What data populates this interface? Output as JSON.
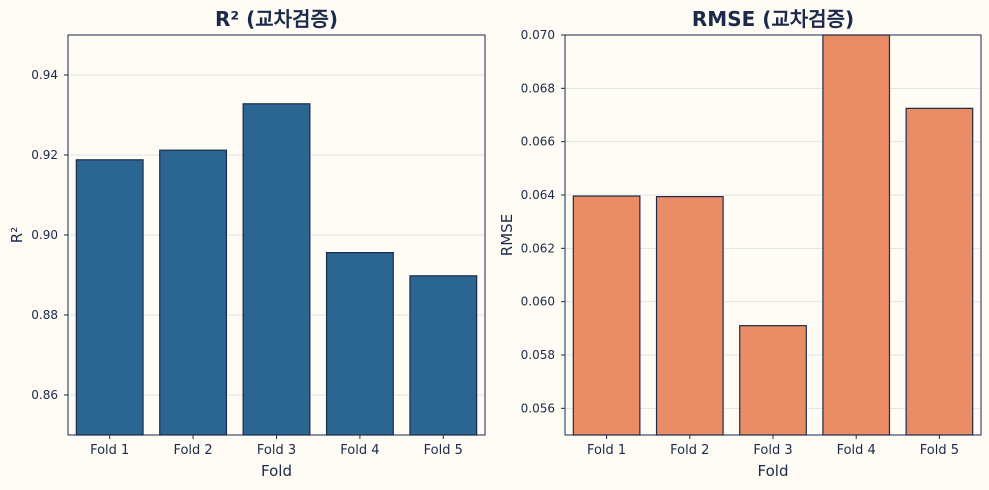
{
  "colors": {
    "background": "#fffbf5",
    "text": "#1b2a4a",
    "grid": "#e3e3e3",
    "edge": "#1b2a4a"
  },
  "chart_data": [
    {
      "type": "bar",
      "title": "R² (교차검증)",
      "xlabel": "Fold",
      "ylabel": "R²",
      "categories": [
        "Fold 1",
        "Fold 2",
        "Fold 3",
        "Fold 4",
        "Fold 5"
      ],
      "values": [
        0.9188,
        0.9212,
        0.9328,
        0.8956,
        0.8898
      ],
      "ylim": [
        0.85,
        0.95
      ],
      "yticks": [
        0.86,
        0.88,
        0.9,
        0.92,
        0.94
      ],
      "ytick_labels": [
        "0.86",
        "0.88",
        "0.90",
        "0.92",
        "0.94"
      ],
      "color": "#2b6693",
      "grid": "horizontal",
      "legend": "none"
    },
    {
      "type": "bar",
      "title": "RMSE (교차검증)",
      "xlabel": "Fold",
      "ylabel": "RMSE",
      "categories": [
        "Fold 1",
        "Fold 2",
        "Fold 3",
        "Fold 4",
        "Fold 5"
      ],
      "values": [
        0.06396,
        0.06394,
        0.0591,
        0.07,
        0.06725
      ],
      "ylim": [
        0.055,
        0.07
      ],
      "yticks": [
        0.056,
        0.058,
        0.06,
        0.062,
        0.064,
        0.066,
        0.068,
        0.07
      ],
      "ytick_labels": [
        "0.056",
        "0.058",
        "0.060",
        "0.062",
        "0.064",
        "0.066",
        "0.068",
        "0.070"
      ],
      "color": "#ea8d66",
      "grid": "horizontal",
      "legend": "none"
    }
  ]
}
